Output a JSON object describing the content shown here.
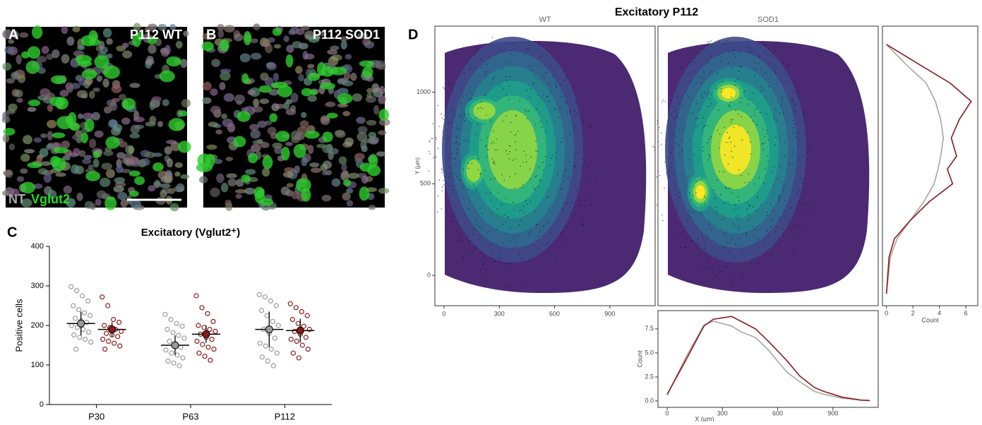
{
  "panels": [
    {
      "letter": "A",
      "label": "P112 WT",
      "stain": [
        "NT",
        "Vglut2"
      ]
    },
    {
      "letter": "B",
      "label": "P112 SOD1"
    },
    {
      "letter": "C"
    },
    {
      "letter": "D"
    }
  ],
  "chart_data": [
    {
      "type": "dot",
      "title": "Excitatory (Vglut2⁺)",
      "ylabel": "Positive cells",
      "categories": [
        "P30",
        "P63",
        "P112"
      ],
      "ylim": [
        0,
        400
      ],
      "yticks": [
        0,
        100,
        200,
        300,
        400
      ],
      "series": [
        {
          "color": "#9a9a9a",
          "means": [
            205,
            150,
            190
          ],
          "sd": [
            30,
            25,
            45
          ],
          "points": [
            [
              298,
              288,
              275,
              262,
              250,
              240,
              232,
              225,
              218,
              212,
              208,
              200,
              195,
              190,
              183,
              176,
              170,
              165,
              158,
              140
            ],
            [
              228,
              215,
              205,
              198,
              190,
              182,
              175,
              168,
              160,
              152,
              145,
              138,
              130,
              125,
              118,
              110,
              105,
              98
            ],
            [
              278,
              272,
              262,
              250,
              238,
              225,
              210,
              200,
              190,
              180,
              168,
              155,
              148,
              140,
              130,
              120,
              110,
              98
            ]
          ]
        },
        {
          "color": "#8b1a1a",
          "means": [
            190,
            178,
            187
          ],
          "sd": [
            18,
            22,
            30
          ],
          "points": [
            [
              272,
              250,
              215,
              208,
              200,
              195,
              190,
              185,
              180,
              176,
              172,
              165,
              160,
              155,
              148,
              140
            ],
            [
              275,
              245,
              230,
              210,
              200,
              195,
              190,
              185,
              178,
              170,
              165,
              160,
              152,
              145,
              140,
              130,
              122,
              112
            ],
            [
              255,
              245,
              235,
              225,
              215,
              205,
              198,
              190,
              185,
              178,
              170,
              165,
              160,
              150,
              140,
              130,
              118
            ]
          ]
        }
      ]
    },
    {
      "type": "density",
      "title": "Excitatory P112",
      "facets": [
        "WT",
        "SOD1"
      ],
      "ylabel": "Y (µm)",
      "xlim": [
        -50,
        1146
      ],
      "ylim": [
        -165,
        1360
      ],
      "xticks": [
        0,
        300,
        600,
        900
      ],
      "yticks": [
        0,
        500,
        1000
      ]
    },
    {
      "type": "line",
      "orientation": "vertical",
      "xlabel": "Count",
      "xlim": [
        -0.3,
        6.9
      ],
      "xticks": [
        0,
        2,
        4,
        6
      ],
      "ylim": [
        -165,
        1360
      ],
      "y": [
        1260,
        1150,
        1050,
        950,
        850,
        750,
        650,
        580,
        500,
        400,
        300,
        200,
        100,
        -100
      ],
      "series": [
        {
          "color": "#a6a6a6",
          "values": [
            0,
            1.5,
            3,
            3.7,
            4.1,
            4.3,
            4.1,
            3.9,
            3.6,
            2.8,
            1.8,
            0.8,
            0.3,
            0
          ]
        },
        {
          "color": "#8b1a1a",
          "values": [
            0,
            2.5,
            4.8,
            6.4,
            5.5,
            4.9,
            5.3,
            4.6,
            5.0,
            3.2,
            1.8,
            0.6,
            0.2,
            0
          ]
        }
      ]
    },
    {
      "type": "line",
      "xlabel": "X (µm)",
      "ylabel": "Count",
      "xlim": [
        -50,
        1146
      ],
      "ylim": [
        -0.66,
        9.4
      ],
      "xticks": [
        0,
        300,
        600,
        900
      ],
      "yticks": [
        {
          "value": 0,
          "label": "0.0"
        },
        {
          "value": 2.5,
          "label": "2.5"
        },
        {
          "value": 5,
          "label": "5.0"
        },
        {
          "value": 7.5,
          "label": "7.5"
        }
      ],
      "x": [
        0,
        100,
        200,
        250,
        350,
        400,
        480,
        550,
        650,
        720,
        800,
        850,
        950,
        1050,
        1100
      ],
      "series": [
        {
          "color": "#a6a6a6",
          "values": [
            0.6,
            4.5,
            7.9,
            8.3,
            7.8,
            7.2,
            6.6,
            5.3,
            3.0,
            2.0,
            1.0,
            0.7,
            0.3,
            0.1,
            0.05
          ]
        },
        {
          "color": "#8b1a1a",
          "values": [
            0.7,
            4.2,
            7.8,
            8.5,
            8.8,
            8.3,
            7.5,
            6.2,
            4.2,
            2.6,
            1.4,
            1.0,
            0.4,
            0.1,
            0.05
          ]
        }
      ]
    }
  ]
}
